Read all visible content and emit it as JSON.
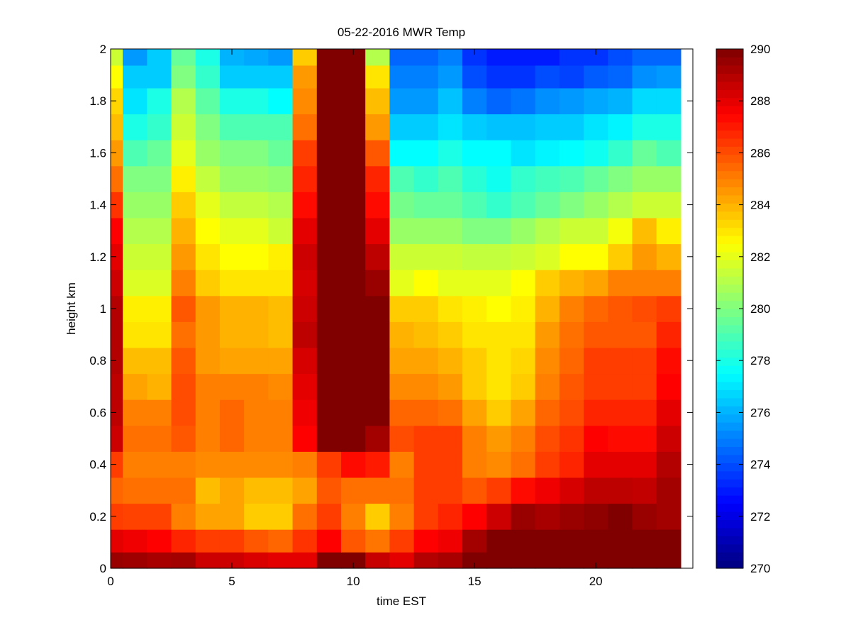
{
  "chart_data": {
    "type": "heatmap",
    "title": "05-22-2016 MWR Temp",
    "xlabel": "time EST",
    "ylabel": "height km",
    "xlim": [
      0,
      24
    ],
    "ylim": [
      0,
      2
    ],
    "xticks": [
      0,
      5,
      10,
      15,
      20
    ],
    "yticks": [
      0,
      0.2,
      0.4,
      0.6,
      0.8,
      1,
      1.2,
      1.4,
      1.6,
      1.8,
      2
    ],
    "colorbar": {
      "min": 270,
      "max": 290,
      "ticks": [
        270,
        272,
        274,
        276,
        278,
        280,
        282,
        284,
        286,
        288,
        290
      ],
      "colormap": "jet"
    },
    "x": [
      0,
      1,
      2,
      3,
      4,
      5,
      6,
      7,
      8,
      9,
      10,
      11,
      12,
      13,
      14,
      15,
      16,
      17,
      18,
      19,
      20,
      21,
      22,
      23
    ],
    "y": [
      0.025,
      0.1,
      0.2,
      0.3,
      0.4,
      0.5,
      0.6,
      0.7,
      0.8,
      0.9,
      1.0,
      1.1,
      1.2,
      1.3,
      1.4,
      1.5,
      1.6,
      1.7,
      1.8,
      1.9,
      1.975
    ],
    "values_note": "temperature in K, rows ordered by y (low to high), columns by x",
    "values": [
      [
        289.5,
        289.4,
        289.2,
        289.3,
        288.5,
        288.5,
        288.2,
        288.0,
        288.0,
        290,
        290,
        288.6,
        288.0,
        289.0,
        289.2,
        290,
        290,
        290,
        290,
        290,
        290,
        290,
        290,
        290
      ],
      [
        288.0,
        287.8,
        287.5,
        286.8,
        286.3,
        286.3,
        285.8,
        285.5,
        286.5,
        287.5,
        285.8,
        285.2,
        286.3,
        287.5,
        287.8,
        289.3,
        290,
        290,
        290,
        290,
        290,
        290,
        290,
        290
      ],
      [
        286.3,
        286.2,
        286.2,
        285.0,
        284.3,
        284.3,
        283.5,
        283.5,
        285.3,
        286.3,
        285.0,
        283.5,
        285.0,
        286.3,
        286.8,
        287.5,
        288.5,
        289.5,
        289.2,
        289.5,
        289.7,
        290,
        289.5,
        289.3
      ],
      [
        285.5,
        285.3,
        285.3,
        285.3,
        283.8,
        284.3,
        283.8,
        283.8,
        284.3,
        285.8,
        285.3,
        285.3,
        285.3,
        286.3,
        286.3,
        285.8,
        286.3,
        287.3,
        287.8,
        288.3,
        288.8,
        288.8,
        288.7,
        289.3
      ],
      [
        286.3,
        285.0,
        285.0,
        285.0,
        284.8,
        284.8,
        284.8,
        284.8,
        285.0,
        286.3,
        287.3,
        287.0,
        285.0,
        286.3,
        286.3,
        285.0,
        284.8,
        285.3,
        286.3,
        286.8,
        288.0,
        288.0,
        288.0,
        289.0
      ],
      [
        288.5,
        285.3,
        285.3,
        285.8,
        285.0,
        285.5,
        285.0,
        285.0,
        287.5,
        290,
        290,
        289.3,
        286.0,
        286.3,
        286.3,
        285.0,
        284.5,
        285.0,
        286.0,
        286.5,
        287.5,
        287.3,
        287.3,
        288.5
      ],
      [
        288.8,
        285.0,
        285.0,
        286.0,
        285.0,
        285.5,
        285.0,
        285.0,
        287.8,
        290,
        290,
        290,
        285.5,
        285.5,
        285.3,
        284.3,
        283.5,
        284.3,
        285.5,
        286.0,
        286.8,
        286.8,
        286.8,
        288.0
      ],
      [
        288.8,
        284.3,
        284.0,
        286.0,
        285.0,
        285.0,
        285.0,
        284.8,
        288.0,
        290,
        290,
        290,
        284.8,
        284.8,
        284.5,
        283.5,
        283.0,
        283.5,
        285.0,
        285.8,
        286.3,
        286.3,
        286.3,
        287.5
      ],
      [
        289.0,
        283.8,
        283.8,
        285.8,
        284.5,
        284.3,
        284.3,
        284.3,
        288.3,
        290,
        290,
        290,
        284.3,
        284.3,
        284.0,
        283.5,
        283.0,
        283.3,
        284.8,
        285.5,
        286.3,
        286.3,
        286.3,
        287.3
      ],
      [
        289.0,
        283.0,
        283.0,
        285.3,
        284.5,
        284.0,
        284.0,
        283.8,
        288.8,
        290,
        290,
        290,
        284.0,
        283.8,
        283.5,
        283.0,
        283.0,
        283.0,
        284.5,
        285.3,
        285.8,
        285.8,
        285.8,
        286.8
      ],
      [
        289.0,
        282.8,
        282.8,
        285.8,
        284.5,
        284.0,
        284.0,
        283.8,
        288.5,
        290,
        290,
        290,
        283.5,
        283.5,
        283.0,
        282.8,
        282.5,
        282.8,
        284.0,
        285.0,
        285.5,
        285.8,
        286.0,
        286.3
      ],
      [
        288.5,
        281.8,
        281.8,
        285.0,
        283.5,
        283.0,
        283.0,
        283.0,
        288.3,
        290,
        290,
        289.5,
        282.0,
        282.5,
        282.0,
        282.0,
        282.0,
        282.5,
        283.5,
        284.0,
        284.3,
        285.0,
        285.0,
        285.0
      ],
      [
        288.0,
        281.5,
        281.5,
        284.5,
        283.0,
        282.5,
        282.5,
        282.8,
        288.5,
        290,
        290,
        288.8,
        281.5,
        281.5,
        281.5,
        281.3,
        281.3,
        281.5,
        281.8,
        282.5,
        282.5,
        283.5,
        284.5,
        284.0
      ],
      [
        287.5,
        281.0,
        281.0,
        284.0,
        282.5,
        282.0,
        282.0,
        281.5,
        288.0,
        290,
        290,
        288.0,
        280.5,
        280.5,
        280.5,
        280.0,
        280.0,
        280.5,
        281.0,
        281.5,
        281.5,
        282.3,
        283.8,
        282.8
      ],
      [
        286.5,
        280.5,
        280.5,
        283.5,
        282.0,
        281.3,
        281.3,
        281.0,
        287.3,
        290,
        290,
        287.3,
        279.8,
        279.5,
        279.5,
        279.0,
        278.5,
        279.0,
        279.5,
        280.0,
        280.5,
        281.0,
        281.5,
        281.5
      ],
      [
        285.3,
        280.0,
        280.0,
        282.8,
        281.3,
        280.5,
        280.5,
        280.3,
        286.8,
        290,
        290,
        286.8,
        279.0,
        278.5,
        279.0,
        278.3,
        277.8,
        278.5,
        278.8,
        279.0,
        279.5,
        280.0,
        280.5,
        280.5
      ],
      [
        284.5,
        279.0,
        279.5,
        282.0,
        280.5,
        280.0,
        280.0,
        279.5,
        286.3,
        290,
        290,
        285.8,
        277.5,
        277.5,
        278.0,
        277.5,
        277.5,
        277.0,
        277.3,
        277.5,
        277.8,
        278.5,
        279.5,
        279.0
      ],
      [
        283.8,
        278.0,
        278.5,
        281.5,
        280.0,
        279.0,
        279.0,
        279.0,
        285.3,
        290,
        290,
        284.5,
        276.5,
        276.5,
        277.0,
        276.5,
        276.3,
        276.3,
        276.5,
        276.5,
        277.0,
        277.3,
        278.0,
        278.0
      ],
      [
        283.3,
        277.0,
        278.0,
        281.0,
        279.3,
        278.0,
        278.0,
        277.5,
        284.8,
        290,
        290,
        283.8,
        275.5,
        275.5,
        276.3,
        275.0,
        274.5,
        274.8,
        275.3,
        275.5,
        275.8,
        276.0,
        276.8,
        276.8
      ],
      [
        282.5,
        276.5,
        276.5,
        280.0,
        278.5,
        276.5,
        276.5,
        276.5,
        284.5,
        290,
        290,
        283.0,
        275.0,
        275.0,
        275.5,
        274.0,
        273.5,
        273.5,
        274.0,
        273.8,
        274.3,
        274.5,
        275.3,
        275.5
      ],
      [
        281.5,
        275.5,
        276.5,
        279.5,
        278.0,
        276.0,
        275.8,
        275.5,
        283.5,
        290,
        290,
        281.0,
        274.5,
        274.5,
        275.0,
        273.5,
        273.0,
        273.0,
        273.0,
        273.5,
        273.5,
        274.0,
        274.5,
        274.5
      ]
    ]
  }
}
